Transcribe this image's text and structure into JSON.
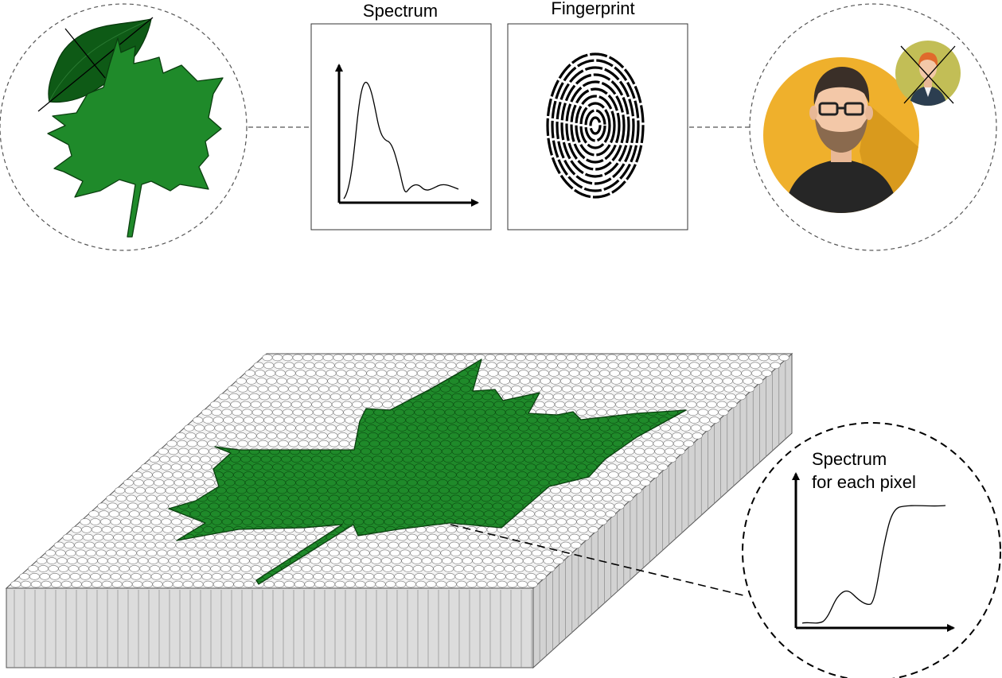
{
  "labels": {
    "spectrum_title": "Spectrum",
    "fingerprint_title": "Fingerprint",
    "pixel_spectrum_line1": "Spectrum",
    "pixel_spectrum_line2": "for each pixel"
  },
  "colors": {
    "leaf_green": "#1f8a2a",
    "leaf_dark_green": "#0e5a16",
    "cylinder_fill": "#f4f4f4",
    "cylinder_side": "#dcdcdc",
    "person_bg": "#efb02c",
    "person_shadow": "#d99a1d",
    "small_avatar_bg": "#c2be56",
    "shirt": "#262626",
    "skin": "#f3c8a8",
    "hair": "#3a2f28",
    "beard": "#8a6a4e"
  },
  "icons": [
    "maple-leaf-icon",
    "birch-leaf-icon",
    "fingerprint-icon",
    "person-avatar-icon",
    "small-person-avatar-icon"
  ]
}
